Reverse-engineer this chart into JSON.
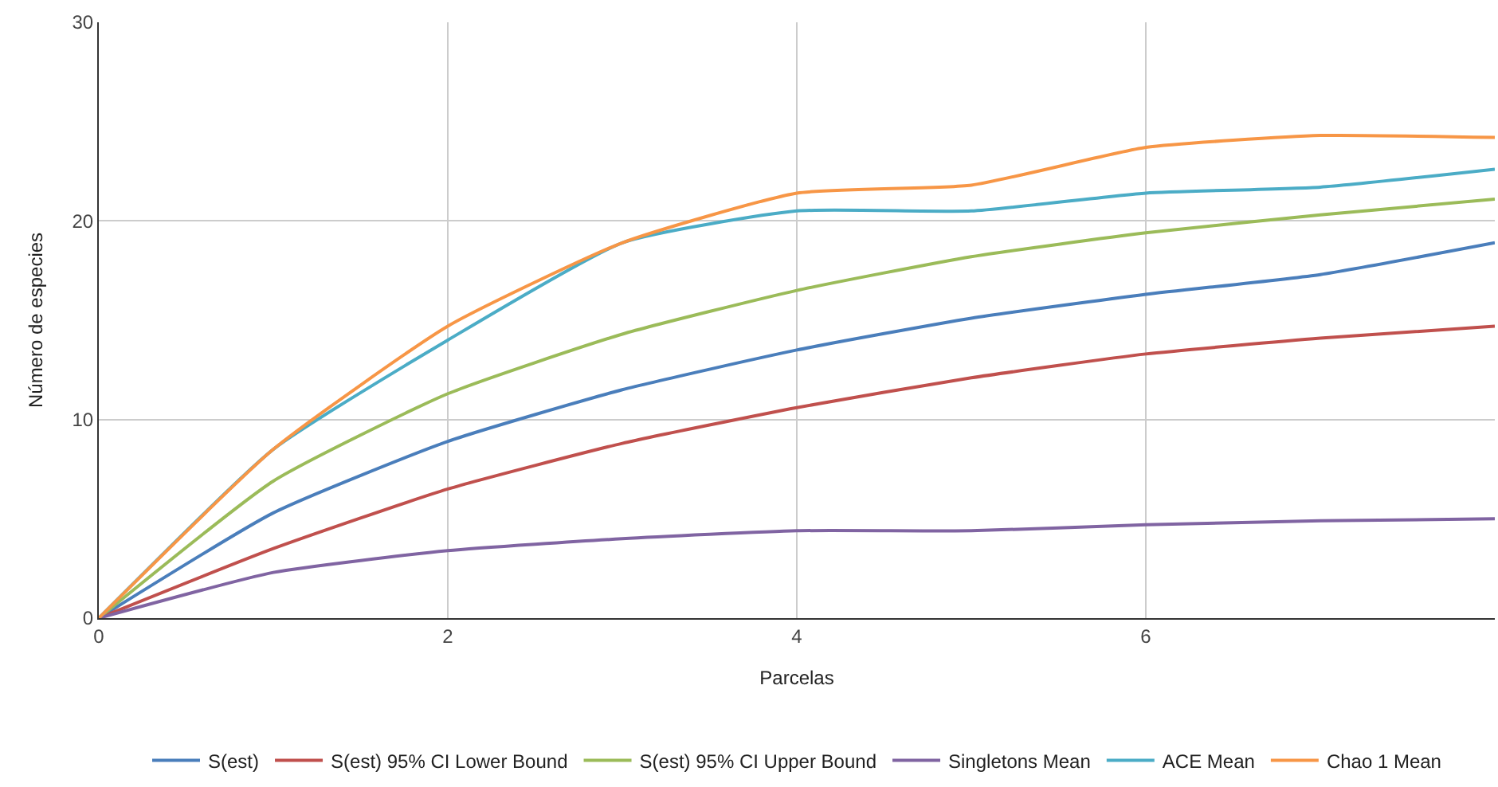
{
  "chart_data": {
    "type": "line",
    "xlabel": "Parcelas",
    "ylabel": "Número de especies",
    "x": [
      0,
      1,
      2,
      3,
      4,
      5,
      6,
      7,
      8
    ],
    "xlim": [
      0,
      8
    ],
    "xticks": [
      0,
      2,
      4,
      6
    ],
    "ylim": [
      0,
      30
    ],
    "yticks": [
      0,
      10,
      20,
      30
    ],
    "grid": true,
    "legend": "bottom",
    "marker": "none",
    "line_style": "solid",
    "series": [
      {
        "name": "S(est)",
        "color": "#4a7ebb",
        "values": [
          0,
          5.3,
          8.9,
          11.5,
          13.5,
          15.1,
          16.3,
          17.3,
          18.9
        ]
      },
      {
        "name": "S(est) 95% CI Lower Bound",
        "color": "#c0504d",
        "values": [
          0,
          3.5,
          6.5,
          8.8,
          10.6,
          12.1,
          13.3,
          14.1,
          14.7
        ]
      },
      {
        "name": "S(est) 95% CI Upper Bound",
        "color": "#9bbb59",
        "values": [
          0,
          6.9,
          11.3,
          14.3,
          16.5,
          18.2,
          19.4,
          20.3,
          21.1
        ]
      },
      {
        "name": "Singletons Mean",
        "color": "#8064a2",
        "values": [
          0,
          2.3,
          3.4,
          4.0,
          4.4,
          4.4,
          4.7,
          4.9,
          5.0
        ]
      },
      {
        "name": "ACE Mean",
        "color": "#4bacc6",
        "values": [
          0,
          8.5,
          14.0,
          18.9,
          20.5,
          20.5,
          21.4,
          21.7,
          22.6
        ]
      },
      {
        "name": "Chao 1 Mean",
        "color": "#f79646",
        "values": [
          0,
          8.5,
          14.7,
          18.9,
          21.4,
          21.8,
          23.7,
          24.3,
          24.2
        ]
      }
    ]
  }
}
